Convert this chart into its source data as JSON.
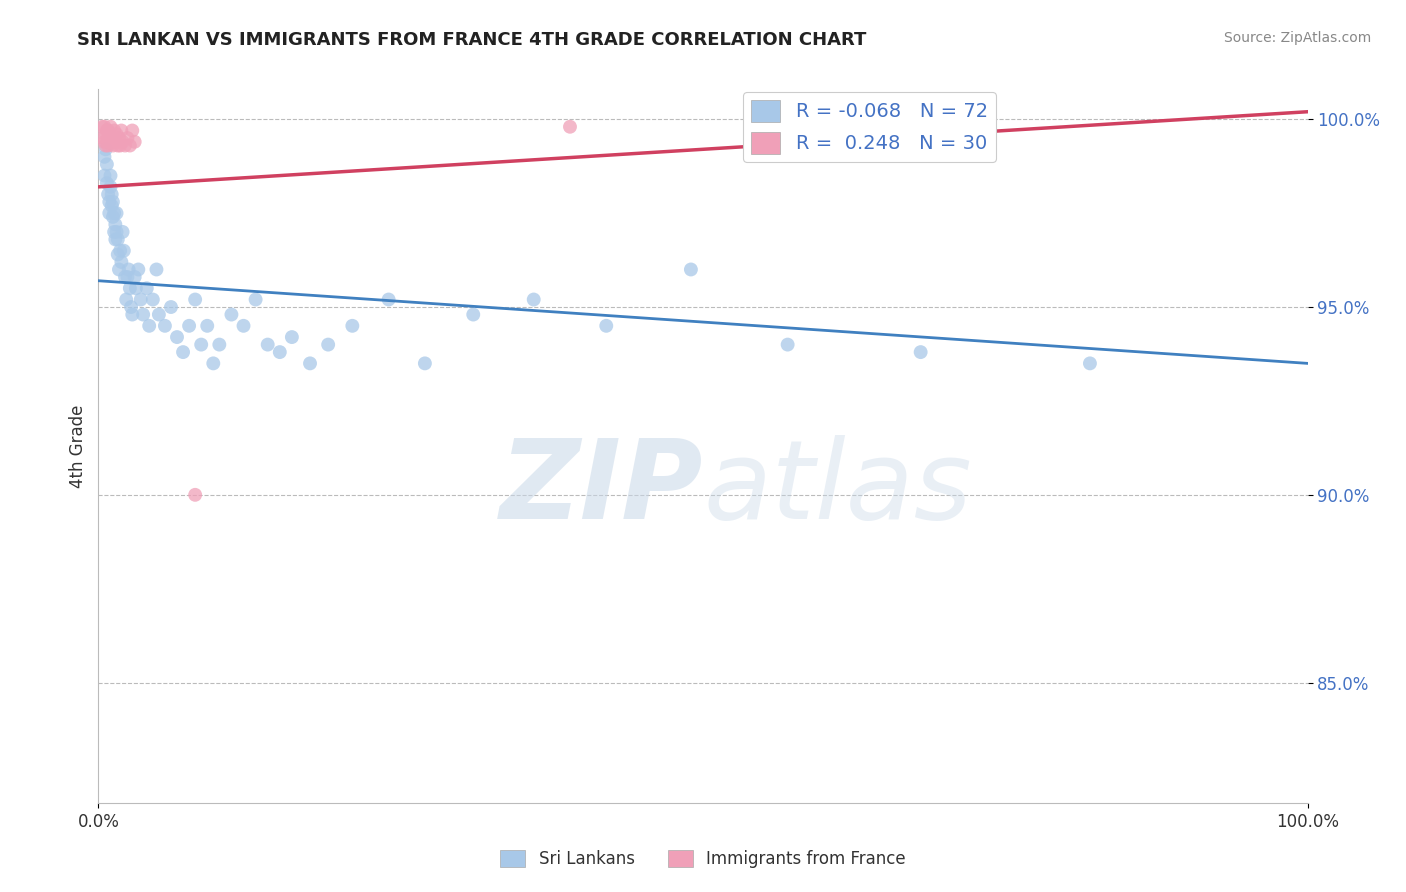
{
  "title": "SRI LANKAN VS IMMIGRANTS FROM FRANCE 4TH GRADE CORRELATION CHART",
  "source_text": "Source: ZipAtlas.com",
  "ylabel": "4th Grade",
  "xlim": [
    0.0,
    1.0
  ],
  "ylim": [
    0.818,
    1.008
  ],
  "yticks": [
    0.85,
    0.9,
    0.95,
    1.0
  ],
  "ytick_labels": [
    "85.0%",
    "90.0%",
    "95.0%",
    "100.0%"
  ],
  "xticks": [
    0.0,
    1.0
  ],
  "xtick_labels": [
    "0.0%",
    "100.0%"
  ],
  "blue_R": -0.068,
  "blue_N": 72,
  "pink_R": 0.248,
  "pink_N": 30,
  "blue_color": "#A8C8E8",
  "pink_color": "#F0A0B8",
  "blue_line_color": "#4080C0",
  "pink_line_color": "#D04060",
  "watermark": "ZIPatlas",
  "legend_label_blue": "Sri Lankans",
  "legend_label_pink": "Immigrants from France",
  "blue_scatter_x": [
    0.005,
    0.005,
    0.006,
    0.007,
    0.007,
    0.008,
    0.009,
    0.009,
    0.01,
    0.01,
    0.011,
    0.011,
    0.012,
    0.012,
    0.013,
    0.013,
    0.014,
    0.014,
    0.015,
    0.015,
    0.016,
    0.016,
    0.017,
    0.018,
    0.019,
    0.02,
    0.021,
    0.022,
    0.023,
    0.024,
    0.025,
    0.026,
    0.027,
    0.028,
    0.03,
    0.031,
    0.033,
    0.035,
    0.037,
    0.04,
    0.042,
    0.045,
    0.048,
    0.05,
    0.055,
    0.06,
    0.065,
    0.07,
    0.075,
    0.08,
    0.085,
    0.09,
    0.095,
    0.1,
    0.11,
    0.12,
    0.13,
    0.14,
    0.15,
    0.16,
    0.175,
    0.19,
    0.21,
    0.24,
    0.27,
    0.31,
    0.36,
    0.42,
    0.49,
    0.57,
    0.68,
    0.82
  ],
  "blue_scatter_y": [
    0.99,
    0.985,
    0.992,
    0.988,
    0.983,
    0.98,
    0.978,
    0.975,
    0.985,
    0.982,
    0.98,
    0.977,
    0.974,
    0.978,
    0.975,
    0.97,
    0.968,
    0.972,
    0.975,
    0.97,
    0.968,
    0.964,
    0.96,
    0.965,
    0.962,
    0.97,
    0.965,
    0.958,
    0.952,
    0.958,
    0.96,
    0.955,
    0.95,
    0.948,
    0.958,
    0.955,
    0.96,
    0.952,
    0.948,
    0.955,
    0.945,
    0.952,
    0.96,
    0.948,
    0.945,
    0.95,
    0.942,
    0.938,
    0.945,
    0.952,
    0.94,
    0.945,
    0.935,
    0.94,
    0.948,
    0.945,
    0.952,
    0.94,
    0.938,
    0.942,
    0.935,
    0.94,
    0.945,
    0.952,
    0.935,
    0.948,
    0.952,
    0.945,
    0.96,
    0.94,
    0.938,
    0.935
  ],
  "pink_scatter_x": [
    0.003,
    0.004,
    0.005,
    0.005,
    0.006,
    0.006,
    0.007,
    0.007,
    0.008,
    0.008,
    0.009,
    0.01,
    0.01,
    0.011,
    0.012,
    0.013,
    0.014,
    0.015,
    0.016,
    0.017,
    0.018,
    0.019,
    0.02,
    0.022,
    0.024,
    0.026,
    0.028,
    0.03,
    0.08,
    0.39
  ],
  "pink_scatter_y": [
    0.998,
    0.995,
    0.998,
    0.994,
    0.996,
    0.993,
    0.997,
    0.994,
    0.997,
    0.993,
    0.995,
    0.994,
    0.998,
    0.995,
    0.993,
    0.997,
    0.994,
    0.996,
    0.993,
    0.995,
    0.993,
    0.997,
    0.994,
    0.993,
    0.995,
    0.993,
    0.997,
    0.994,
    0.9,
    0.998
  ],
  "blue_trend_x": [
    0.0,
    1.0
  ],
  "blue_trend_y": [
    0.957,
    0.935
  ],
  "pink_trend_x": [
    0.0,
    1.0
  ],
  "pink_trend_y": [
    0.982,
    1.002
  ]
}
